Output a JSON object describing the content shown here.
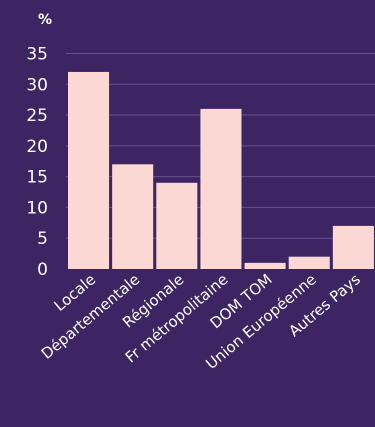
{
  "chart_data": {
    "type": "bar",
    "categories": [
      "Locale",
      "Départementale",
      "Régionale",
      "Fr métropolitaine",
      "DOM TOM",
      "Union Européenne",
      "Autres Pays"
    ],
    "values": [
      32,
      17,
      14,
      26,
      1,
      2,
      7
    ],
    "title": "",
    "xlabel": "",
    "ylabel": "%",
    "ylim": [
      0,
      38
    ],
    "yticks": [
      0,
      5,
      10,
      15,
      20,
      25,
      30,
      35
    ],
    "grid": true,
    "legend": "none",
    "colors": {
      "background": "#3d2563",
      "bar": "#fbd8d4",
      "grid": "#6a5290",
      "text": "#ffffff"
    }
  }
}
